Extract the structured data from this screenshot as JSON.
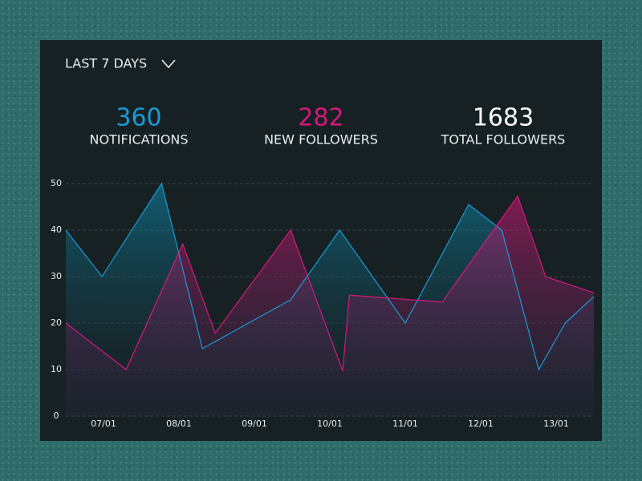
{
  "header": {
    "period": "LAST 7 DAYS"
  },
  "stats": [
    {
      "value": "360",
      "label": "NOTIFICATIONS",
      "color": "#1a9ad6"
    },
    {
      "value": "282",
      "label": "NEW FOLLOWERS",
      "color": "#d4187c"
    },
    {
      "value": "1683",
      "label": "TOTAL FOLLOWERS",
      "color": "#ffffff"
    }
  ],
  "chart_data": {
    "type": "area",
    "xlim": [
      6.5,
      13.5
    ],
    "xticks": [
      {
        "value": 7,
        "label": "07/01"
      },
      {
        "value": 8,
        "label": "08/01"
      },
      {
        "value": 9,
        "label": "09/01"
      },
      {
        "value": 10,
        "label": "10/01"
      },
      {
        "value": 11,
        "label": "11/01"
      },
      {
        "value": 12,
        "label": "12/01"
      },
      {
        "value": 13,
        "label": "13/01"
      }
    ],
    "ylim": [
      0,
      50
    ],
    "yticks": [
      0,
      10,
      20,
      30,
      40,
      50
    ],
    "grid": true,
    "series": [
      {
        "color": "#1a9ad6",
        "x": [
          6.5,
          6.98,
          7.77,
          8.31,
          9.48,
          10.13,
          11.0,
          11.84,
          12.28,
          12.77,
          13.12,
          13.5
        ],
        "values": [
          40,
          30,
          50,
          14.5,
          25,
          40,
          20,
          45.5,
          40,
          10,
          20,
          25.7
        ]
      },
      {
        "color": "#d4187c",
        "x": [
          6.5,
          7.3,
          8.05,
          8.48,
          9.48,
          10.17,
          10.26,
          11.49,
          12.49,
          12.86,
          13.5
        ],
        "values": [
          20,
          10,
          37,
          17.8,
          40,
          9.7,
          26,
          24.5,
          47.3,
          30,
          26.5
        ]
      }
    ]
  }
}
